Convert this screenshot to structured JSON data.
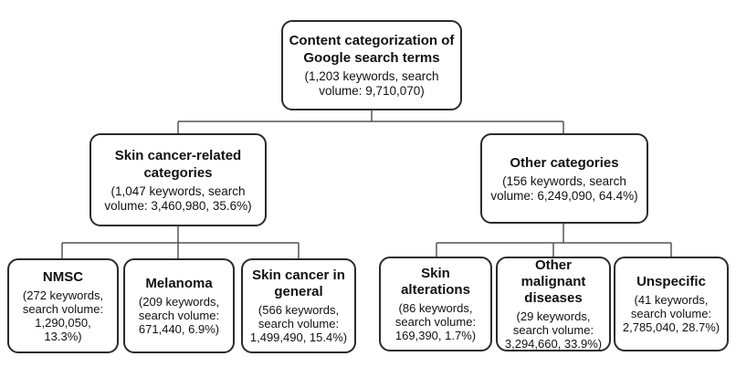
{
  "root": {
    "title": "Content categorization of Google search terms",
    "subtitle": "(1,203 keywords, search volume: 9,710,070)"
  },
  "skin_cancer": {
    "title": "Skin cancer-related categories",
    "subtitle": "(1,047 keywords, search volume: 3,460,980, 35.6%)",
    "children": [
      {
        "title": "NMSC",
        "subtitle": "(272 keywords, search volume: 1,290,050, 13.3%)"
      },
      {
        "title": "Melanoma",
        "subtitle": "(209 keywords, search volume: 671,440, 6.9%)"
      },
      {
        "title": "Skin cancer in general",
        "subtitle": "(566 keywords, search volume: 1,499,490, 15.4%)"
      }
    ]
  },
  "other": {
    "title": "Other categories",
    "subtitle": "(156 keywords, search volume: 6,249,090, 64.4%)",
    "children": [
      {
        "title": "Skin alterations",
        "subtitle": "(86 keywords, search volume: 169,390, 1.7%)"
      },
      {
        "title": "Other malignant diseases",
        "subtitle": "(29 keywords, search volume: 3,294,660, 33.9%)"
      },
      {
        "title": "Unspecific",
        "subtitle": "(41 keywords, search volume: 2,785,040, 28.7%)"
      }
    ]
  }
}
